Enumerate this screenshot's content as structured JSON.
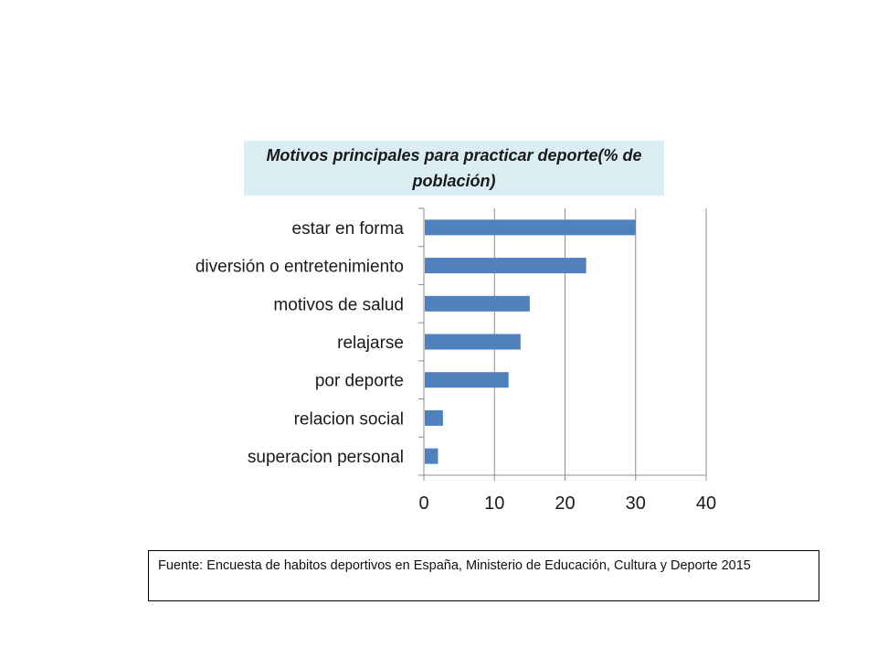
{
  "chart_data": {
    "type": "bar",
    "orientation": "horizontal",
    "title": "Motivos principales para practicar deporte(% de población)",
    "title_lines": [
      "Motivos principales para practicar deporte(% de",
      "población)"
    ],
    "categories": [
      "estar en forma",
      "diversión o entretenimiento",
      "motivos de salud",
      "relajarse",
      "por deporte",
      "relacion social",
      "superacion personal"
    ],
    "values": [
      30,
      23,
      15,
      13.7,
      12,
      2.7,
      2
    ],
    "xlim": [
      0,
      40
    ],
    "xticks": [
      "0",
      "10",
      "20",
      "30",
      "40"
    ],
    "grid": true,
    "bar_color": "#4f81bd",
    "title_background": "#dbeef4"
  },
  "source": {
    "text": "Fuente: Encuesta de habitos  deportivos en España, Ministerio de Educación, Cultura y Deporte 2015"
  }
}
